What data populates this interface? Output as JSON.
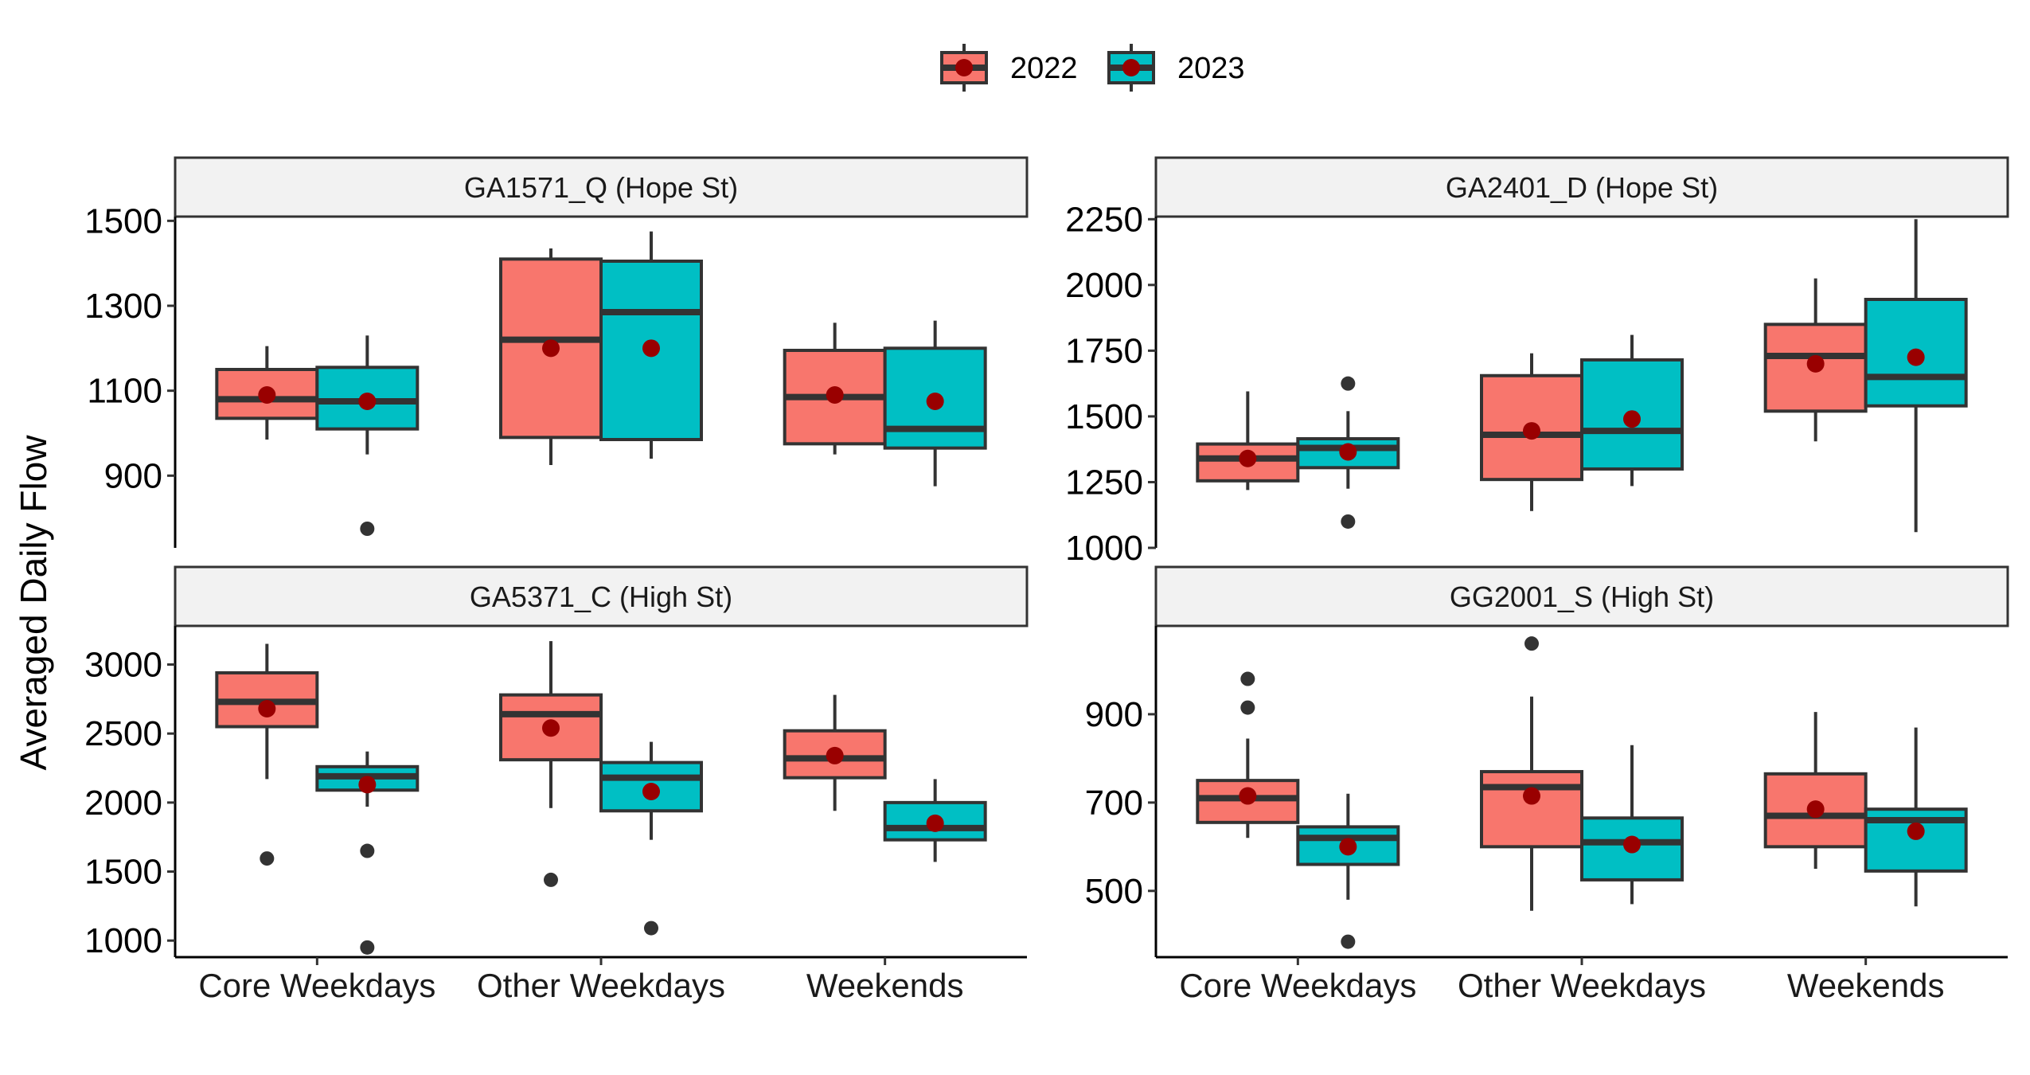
{
  "chart_data": {
    "type": "box",
    "y_label": "Averaged Daily Flow",
    "categories": [
      "Core Weekdays",
      "Other Weekdays",
      "Weekends"
    ],
    "legend": {
      "position": "top",
      "entries": [
        {
          "label": "2022",
          "color": "#F8766D"
        },
        {
          "label": "2023",
          "color": "#00BFC4"
        }
      ]
    },
    "mean_color": "#990000",
    "panels": [
      {
        "title": "GA1571_Q (Hope St)",
        "ylim": [
          730,
          1510
        ],
        "yticks": [
          900,
          1100,
          1300,
          1500
        ],
        "series": [
          {
            "name": "2022",
            "boxes": [
              {
                "q1": 1035,
                "median": 1080,
                "q3": 1150,
                "whislo": 985,
                "whishi": 1205,
                "mean": 1090,
                "outliers": []
              },
              {
                "q1": 990,
                "median": 1220,
                "q3": 1410,
                "whislo": 925,
                "whishi": 1435,
                "mean": 1200,
                "outliers": []
              },
              {
                "q1": 975,
                "median": 1085,
                "q3": 1195,
                "whislo": 950,
                "whishi": 1260,
                "mean": 1090,
                "outliers": []
              }
            ]
          },
          {
            "name": "2023",
            "boxes": [
              {
                "q1": 1010,
                "median": 1075,
                "q3": 1155,
                "whislo": 950,
                "whishi": 1230,
                "mean": 1075,
                "outliers": [
                  775
                ]
              },
              {
                "q1": 985,
                "median": 1285,
                "q3": 1405,
                "whislo": 940,
                "whishi": 1475,
                "mean": 1200,
                "outliers": []
              },
              {
                "q1": 965,
                "median": 1010,
                "q3": 1200,
                "whislo": 875,
                "whishi": 1265,
                "mean": 1075,
                "outliers": []
              }
            ]
          }
        ]
      },
      {
        "title": "GA2401_D (Hope St)",
        "ylim": [
          1000,
          2260
        ],
        "yticks": [
          1000,
          1250,
          1500,
          1750,
          2000,
          2250
        ],
        "series": [
          {
            "name": "2022",
            "boxes": [
              {
                "q1": 1255,
                "median": 1340,
                "q3": 1395,
                "whislo": 1220,
                "whishi": 1595,
                "mean": 1340,
                "outliers": []
              },
              {
                "q1": 1260,
                "median": 1430,
                "q3": 1655,
                "whislo": 1140,
                "whishi": 1740,
                "mean": 1445,
                "outliers": []
              },
              {
                "q1": 1520,
                "median": 1730,
                "q3": 1850,
                "whislo": 1405,
                "whishi": 2025,
                "mean": 1700,
                "outliers": []
              }
            ]
          },
          {
            "name": "2023",
            "boxes": [
              {
                "q1": 1305,
                "median": 1380,
                "q3": 1415,
                "whislo": 1225,
                "whishi": 1520,
                "mean": 1365,
                "outliers": [
                  1625,
                  1100
                ]
              },
              {
                "q1": 1300,
                "median": 1445,
                "q3": 1715,
                "whislo": 1235,
                "whishi": 1810,
                "mean": 1490,
                "outliers": []
              },
              {
                "q1": 1540,
                "median": 1650,
                "q3": 1945,
                "whislo": 1060,
                "whishi": 2250,
                "mean": 1725,
                "outliers": []
              }
            ]
          }
        ]
      },
      {
        "title": "GA5371_C (High St)",
        "ylim": [
          880,
          3280
        ],
        "yticks": [
          1000,
          1500,
          2000,
          2500,
          3000
        ],
        "series": [
          {
            "name": "2022",
            "boxes": [
              {
                "q1": 2550,
                "median": 2730,
                "q3": 2940,
                "whislo": 2170,
                "whishi": 3150,
                "mean": 2680,
                "outliers": [
                  1595
                ]
              },
              {
                "q1": 2310,
                "median": 2640,
                "q3": 2780,
                "whislo": 1960,
                "whishi": 3170,
                "mean": 2540,
                "outliers": [
                  1440
                ]
              },
              {
                "q1": 2180,
                "median": 2320,
                "q3": 2520,
                "whislo": 1940,
                "whishi": 2780,
                "mean": 2340,
                "outliers": []
              }
            ]
          },
          {
            "name": "2023",
            "boxes": [
              {
                "q1": 2090,
                "median": 2190,
                "q3": 2260,
                "whislo": 1970,
                "whishi": 2370,
                "mean": 2130,
                "outliers": [
                  1650,
                  950
                ]
              },
              {
                "q1": 1940,
                "median": 2180,
                "q3": 2290,
                "whislo": 1730,
                "whishi": 2440,
                "mean": 2080,
                "outliers": [
                  1090
                ]
              },
              {
                "q1": 1730,
                "median": 1815,
                "q3": 2000,
                "whislo": 1570,
                "whishi": 2170,
                "mean": 1850,
                "outliers": []
              }
            ]
          }
        ]
      },
      {
        "title": "GG2001_S (High St)",
        "ylim": [
          350,
          1100
        ],
        "yticks": [
          500,
          700,
          900
        ],
        "series": [
          {
            "name": "2022",
            "boxes": [
              {
                "q1": 655,
                "median": 710,
                "q3": 750,
                "whislo": 620,
                "whishi": 845,
                "mean": 715,
                "outliers": [
                  980,
                  915
                ]
              },
              {
                "q1": 600,
                "median": 735,
                "q3": 770,
                "whislo": 455,
                "whishi": 940,
                "mean": 715,
                "outliers": [
                  1060
                ]
              },
              {
                "q1": 600,
                "median": 670,
                "q3": 765,
                "whislo": 550,
                "whishi": 905,
                "mean": 685,
                "outliers": []
              }
            ]
          },
          {
            "name": "2023",
            "boxes": [
              {
                "q1": 560,
                "median": 620,
                "q3": 645,
                "whislo": 480,
                "whishi": 720,
                "mean": 600,
                "outliers": [
                  385
                ]
              },
              {
                "q1": 525,
                "median": 610,
                "q3": 665,
                "whislo": 470,
                "whishi": 830,
                "mean": 605,
                "outliers": []
              },
              {
                "q1": 545,
                "median": 660,
                "q3": 685,
                "whislo": 465,
                "whishi": 870,
                "mean": 635,
                "outliers": []
              }
            ]
          }
        ]
      }
    ]
  }
}
